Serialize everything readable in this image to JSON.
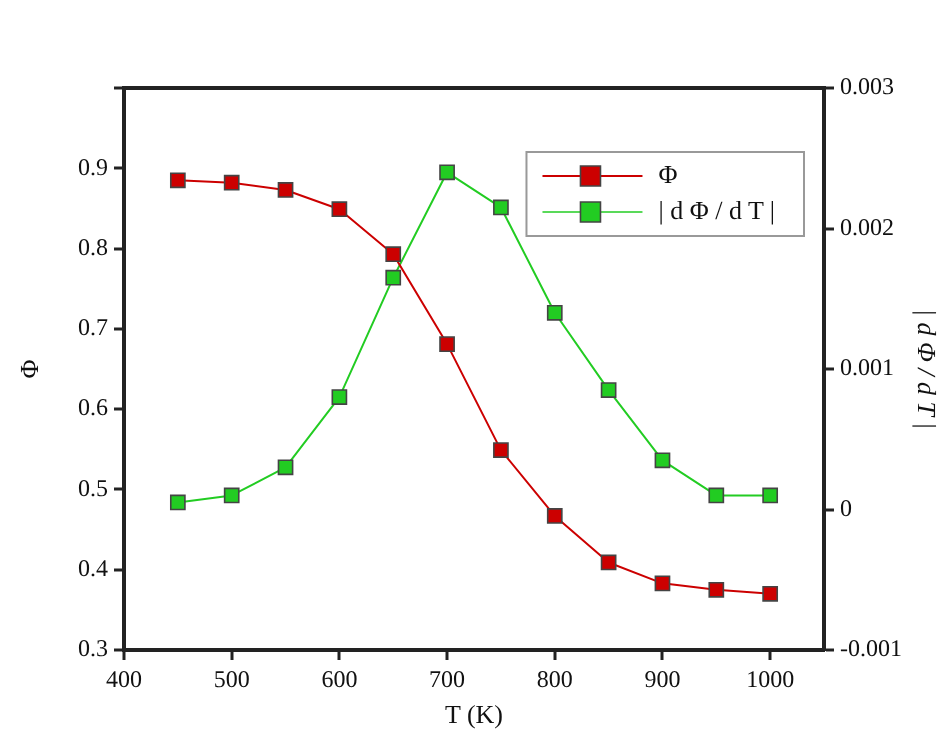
{
  "chart_data": {
    "type": "line",
    "xlabel": "T (K)",
    "ylabel": "Φ",
    "y2label": "| d Φ / d T |",
    "x": [
      450,
      500,
      550,
      600,
      650,
      700,
      750,
      800,
      850,
      900,
      950,
      1000
    ],
    "series": [
      {
        "name": "Φ",
        "color": "#cc0000",
        "values": [
          0.885,
          0.882,
          0.873,
          0.849,
          0.793,
          0.681,
          0.549,
          0.467,
          0.409,
          0.383,
          0.375,
          0.37
        ]
      },
      {
        "name": "| d Φ / d T |",
        "color": "#22cc22",
        "axis": "y2",
        "values": [
          5e-05,
          0.0001,
          0.0003,
          0.0008,
          0.00165,
          0.0024,
          0.00215,
          0.0014,
          0.00085,
          0.00035,
          0.0001,
          0.0001
        ]
      }
    ],
    "xlim": [
      400,
      1050
    ],
    "xticks": [
      400,
      500,
      600,
      700,
      800,
      900,
      1000
    ],
    "ylim": [
      0.3,
      1.0
    ],
    "yticks": [
      0.3,
      0.4,
      0.5,
      0.6,
      0.7,
      0.8,
      0.9,
      {
        "value": 1.0,
        "label": null
      }
    ],
    "y2lim": [
      -0.001,
      0.003
    ],
    "y2ticks": [
      -0.001,
      0,
      0.001,
      0.002,
      0.003
    ],
    "marker": "square",
    "line_style": "solid",
    "grid": false,
    "legend": "top right"
  }
}
